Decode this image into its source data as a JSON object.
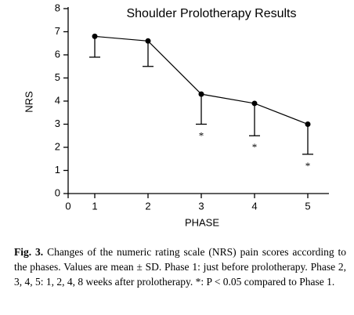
{
  "chart_data": {
    "type": "line",
    "title": "Shoulder Prolotherapy Results",
    "x_label": "PHASE",
    "y_label": "NRS",
    "x": [
      1,
      2,
      3,
      4,
      5
    ],
    "series": [
      {
        "name": "NRS",
        "color": "#000000",
        "values": [
          6.8,
          6.6,
          4.3,
          3.9,
          3.0
        ],
        "errors": [
          0.9,
          1.1,
          1.3,
          1.4,
          1.3
        ],
        "significance_labels": [
          null,
          null,
          "*",
          "*",
          "*"
        ]
      }
    ],
    "xlim": [
      0.5,
      5.5
    ],
    "xticks": [
      {
        "value": 0.5,
        "label": "0"
      },
      1,
      2,
      3,
      4,
      5
    ],
    "ylim": [
      0,
      8
    ],
    "yticks": [
      0,
      1,
      2,
      3,
      4,
      5,
      6,
      7,
      8
    ]
  },
  "caption": {
    "label": "Fig. 3.",
    "text": "Changes of the numeric rating scale (NRS) pain scores according to the phases. Values are mean ± SD. Phase 1: just before prolotherapy. Phase 2, 3, 4, 5: 1, 2, 4, 8 weeks after prolotherapy. *: P < 0.05 compared to Phase 1."
  }
}
